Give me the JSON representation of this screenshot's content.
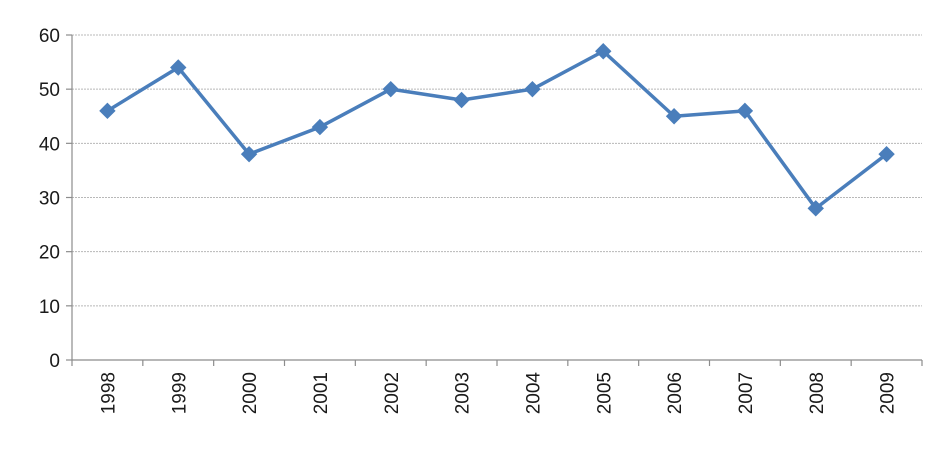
{
  "chart_data": {
    "type": "line",
    "title": "",
    "xlabel": "",
    "ylabel": "",
    "categories": [
      "1998",
      "1999",
      "2000",
      "2001",
      "2002",
      "2003",
      "2004",
      "2005",
      "2006",
      "2007",
      "2008",
      "2009"
    ],
    "series": [
      {
        "values": [
          46,
          54,
          38,
          43,
          50,
          48,
          50,
          57,
          45,
          46,
          28,
          38
        ],
        "color": "#4a7ebb",
        "marker": "diamond"
      }
    ],
    "ylim": [
      0,
      60
    ],
    "yticks": [
      "0",
      "10",
      "20",
      "30",
      "40",
      "50",
      "60"
    ],
    "grid": true,
    "legend": "none"
  }
}
